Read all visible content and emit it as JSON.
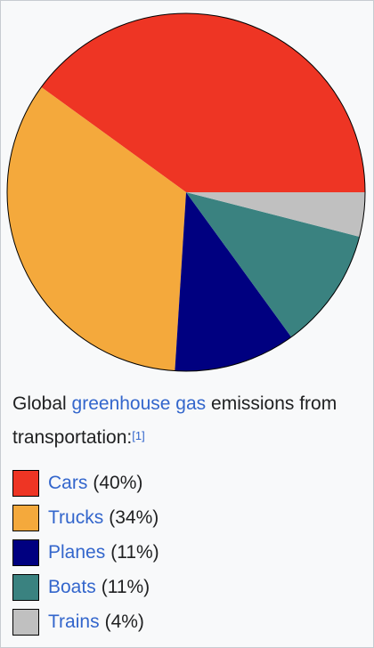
{
  "caption": {
    "prefix": "Global",
    "link": "greenhouse gas",
    "suffix": "emissions from transportation:",
    "ref": "[1]"
  },
  "legend": [
    {
      "label": "Cars",
      "pct": "(40%)",
      "color": "#ee3524"
    },
    {
      "label": "Trucks",
      "pct": "(34%)",
      "color": "#f4a93c"
    },
    {
      "label": "Planes",
      "pct": "(11%)",
      "color": "#000080"
    },
    {
      "label": "Boats",
      "pct": "(11%)",
      "color": "#3a8280"
    },
    {
      "label": "Trains",
      "pct": "(4%)",
      "color": "#c0c0c0"
    }
  ],
  "chart_data": {
    "type": "pie",
    "categories": [
      "Cars",
      "Trucks",
      "Planes",
      "Boats",
      "Trains"
    ],
    "values": [
      40,
      34,
      11,
      11,
      4
    ],
    "colors": [
      "#ee3524",
      "#f4a93c",
      "#000080",
      "#3a8280",
      "#c0c0c0"
    ],
    "start": "3 o'clock",
    "direction": "counterclockwise"
  }
}
